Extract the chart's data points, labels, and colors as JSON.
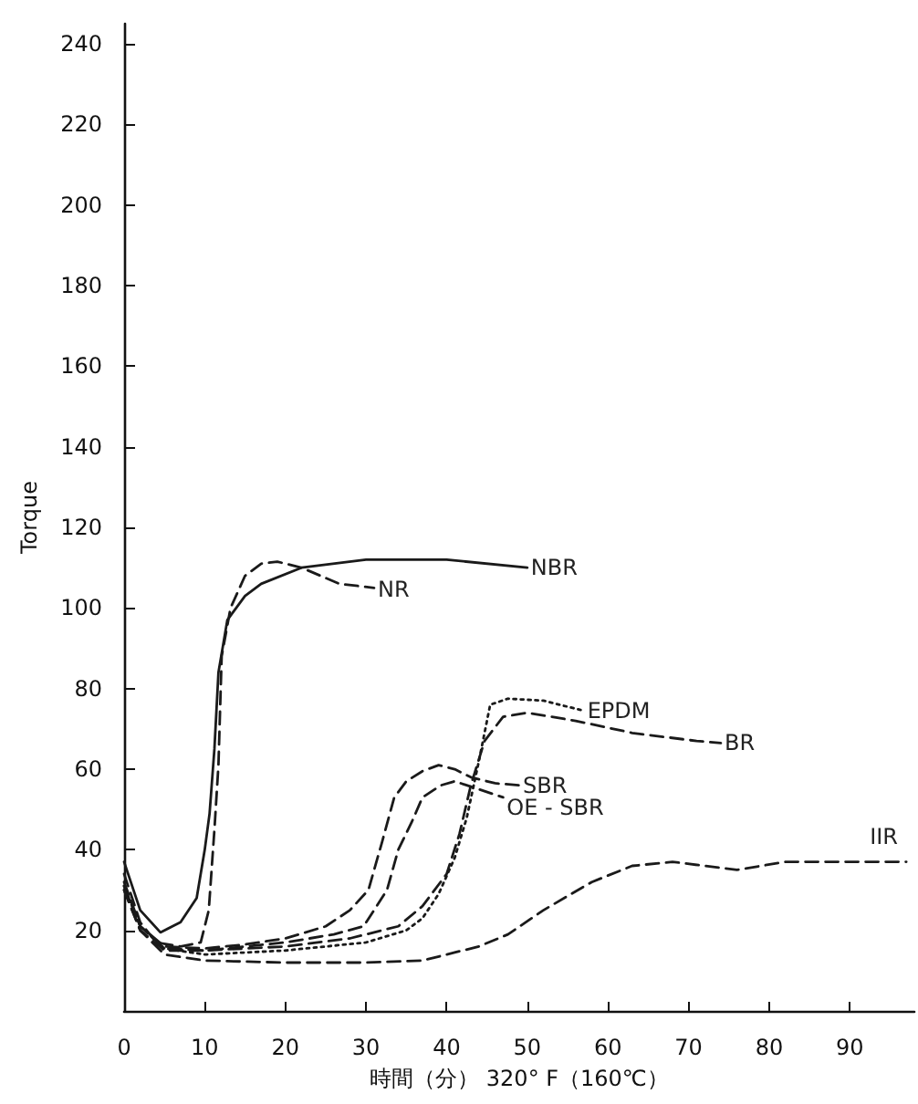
{
  "chart_data": {
    "type": "line",
    "xlabel": "時間（分） 320° F（160℃）",
    "ylabel": "Torque",
    "xlim": [
      0,
      98
    ],
    "xticks": [
      0,
      10,
      20,
      30,
      40,
      50,
      60,
      70,
      80,
      90
    ],
    "ylim": [
      0,
      245
    ],
    "yticks": [
      20,
      40,
      60,
      80,
      100,
      120,
      140,
      160,
      180,
      200,
      220,
      240
    ],
    "grid": false,
    "legend": false,
    "marker": "none",
    "series": [
      {
        "name": "NBR",
        "color": "#1a1a1a",
        "line_style": "solid",
        "x": [
          0,
          2,
          4.5,
          7,
          9,
          10,
          10.6,
          11.2,
          11.7,
          12.8,
          15,
          17,
          22,
          30,
          40,
          50
        ],
        "values": [
          37,
          25,
          19.5,
          22,
          28,
          40,
          49,
          65,
          84,
          97,
          103,
          106,
          110,
          112,
          112,
          110
        ]
      },
      {
        "name": "NR",
        "color": "#1a1a1a",
        "line_style": "dashed",
        "x": [
          0,
          2,
          4,
          7,
          9.5,
          10.5,
          11.2,
          11.7,
          12.1,
          13.2,
          15,
          17,
          19,
          22,
          26.7,
          31
        ],
        "values": [
          34,
          22,
          17,
          16,
          17,
          25,
          45,
          61,
          88,
          100,
          108,
          111,
          111.5,
          110,
          106,
          105
        ]
      },
      {
        "name": "EPDM",
        "color": "#1a1a1a",
        "line_style": "dotted",
        "x": [
          0,
          2,
          5,
          10,
          20,
          30,
          35,
          37,
          39,
          41,
          42.5,
          44,
          45.4,
          47.6,
          52,
          57
        ],
        "values": [
          31,
          21,
          15.5,
          14,
          15,
          17,
          20,
          23,
          29,
          38,
          48,
          62,
          76,
          77.5,
          77,
          74.5
        ]
      },
      {
        "name": "BR",
        "color": "#1a1a1a",
        "line_style": "dashed",
        "x": [
          0,
          2,
          5,
          10,
          20,
          28,
          32,
          34,
          37,
          40,
          41.6,
          43,
          44.7,
          47,
          50,
          56,
          63,
          71,
          74
        ],
        "values": [
          31,
          21,
          15.5,
          15,
          16,
          18,
          20,
          21,
          26,
          34,
          44,
          56,
          67,
          73,
          74,
          72,
          69,
          67,
          66.5
        ]
      },
      {
        "name": "SBR",
        "color": "#1a1a1a",
        "line_style": "dashed",
        "x": [
          0,
          2,
          5,
          10,
          15,
          20,
          25,
          28,
          30.3,
          32,
          33.5,
          35,
          37,
          39,
          41,
          43,
          46,
          49
        ],
        "values": [
          32,
          21,
          16,
          15.5,
          16.5,
          18,
          21,
          25,
          30,
          42,
          53,
          57,
          59.5,
          61,
          60,
          58,
          56.5,
          56
        ]
      },
      {
        "name": "OE - SBR",
        "color": "#1a1a1a",
        "line_style": "dashed",
        "x": [
          0,
          2,
          5,
          10,
          20,
          26,
          29.7,
          31,
          32.6,
          34,
          35.7,
          37,
          39.3,
          41,
          44,
          47
        ],
        "values": [
          30,
          20,
          15,
          15,
          17,
          19,
          21,
          25,
          30,
          40,
          47,
          53,
          56,
          57,
          55,
          53
        ]
      },
      {
        "name": "IIR",
        "color": "#1a1a1a",
        "line_style": "dashed",
        "x": [
          0,
          2,
          5,
          10,
          20,
          30,
          37,
          41,
          44,
          47.6,
          52,
          58,
          63,
          68,
          72,
          76,
          82,
          90,
          97
        ],
        "values": [
          30,
          20,
          14,
          12.5,
          12,
          12,
          12.5,
          14.5,
          16,
          19,
          25,
          32,
          36,
          37,
          36,
          35,
          37,
          37,
          37
        ]
      }
    ]
  }
}
